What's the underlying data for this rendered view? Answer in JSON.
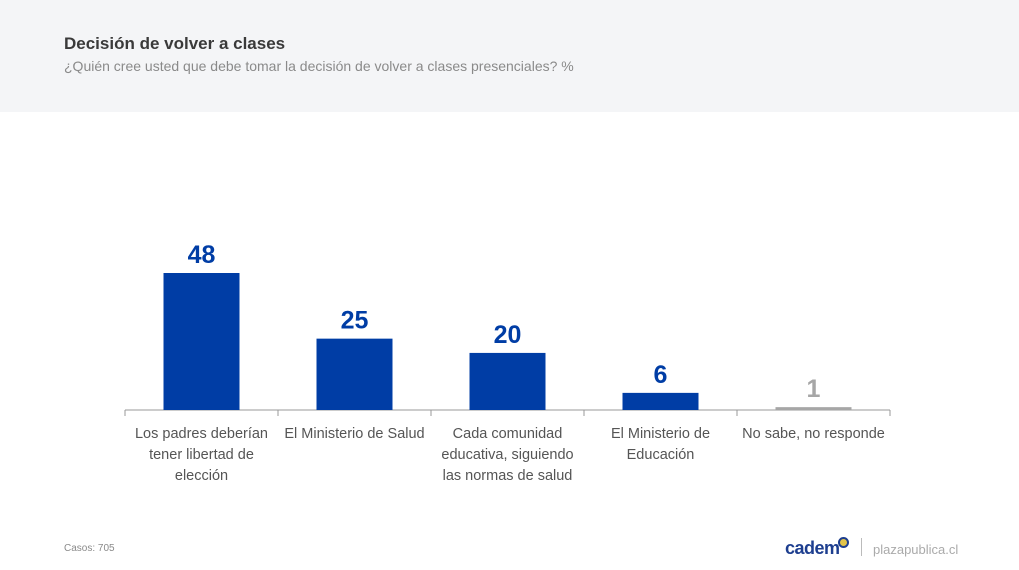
{
  "header": {
    "title": "Decisión de volver a clases",
    "subtitle": "¿Quién cree usted que debe tomar la decisión de volver a clases presenciales? %"
  },
  "chart_data": {
    "type": "bar",
    "title": "Decisión de volver a clases",
    "subtitle": "¿Quién cree usted que debe tomar la decisión de volver a clases presenciales? %",
    "categories": [
      "Los padres deberían tener libertad de elección",
      "El Ministerio de Salud",
      "Cada comunidad educativa, siguiendo las normas de salud",
      "El Ministerio de Educación",
      "No sabe, no responde"
    ],
    "values": [
      48,
      25,
      20,
      6,
      1
    ],
    "colors": [
      "#003da5",
      "#003da5",
      "#003da5",
      "#003da5",
      "#a6a6a6"
    ],
    "xlabel": "",
    "ylabel": "",
    "ylim": [
      0,
      50
    ],
    "grid": false
  },
  "footer": {
    "cases": "Casos: 705",
    "logo": "cadem",
    "site": "plazapublica.cl"
  }
}
